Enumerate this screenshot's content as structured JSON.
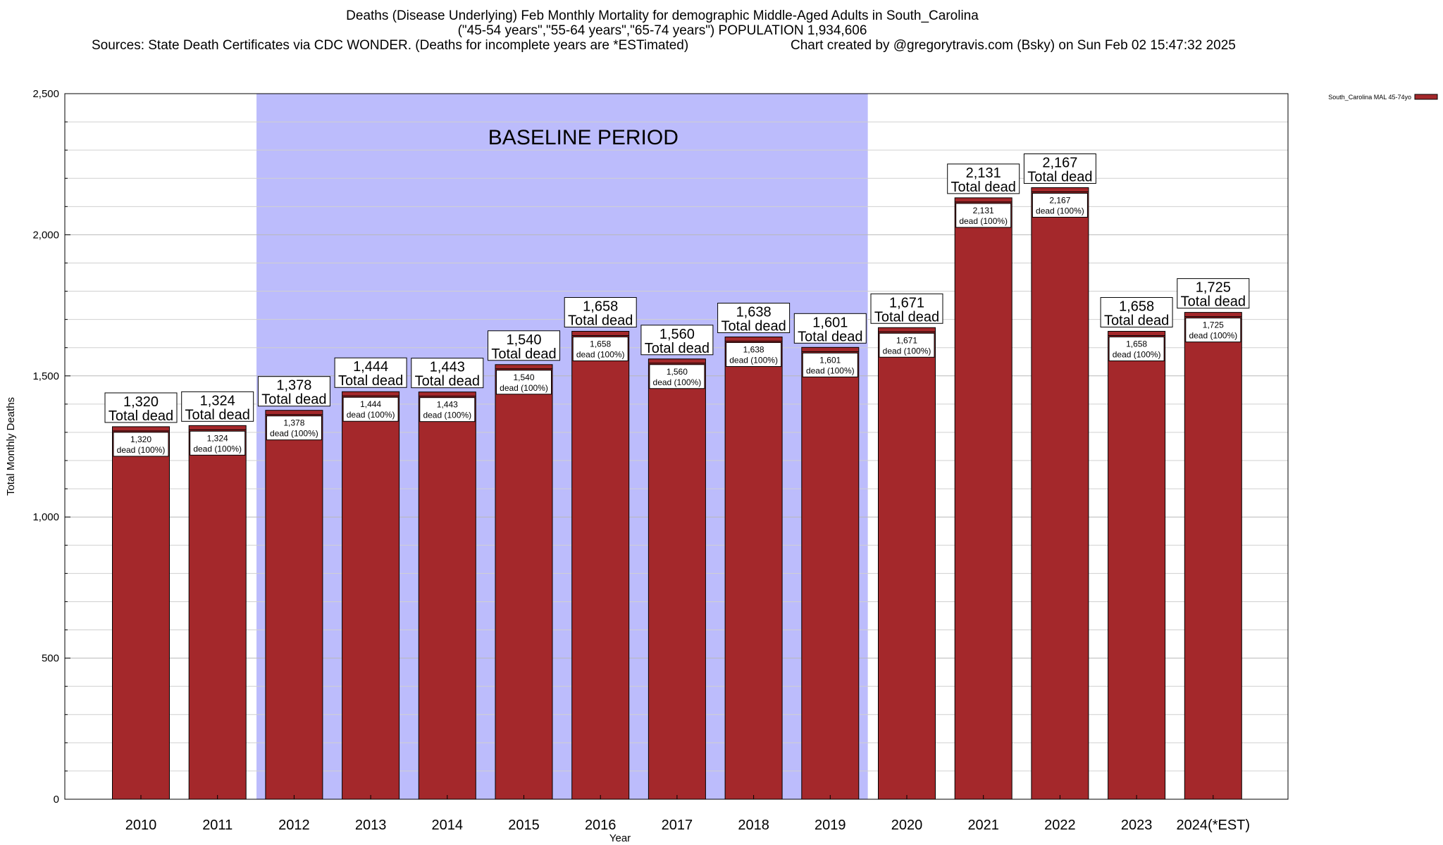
{
  "header": {
    "title_line1": "Deaths (Disease Underlying) Feb Monthly Mortality for demographic Middle-Aged Adults in South_Carolina",
    "title_line2": "(\"45-54 years\",\"55-64 years\",\"65-74 years\") POPULATION 1,934,606",
    "sources": "Sources: State Death Certificates via CDC WONDER. (Deaths for incomplete years are *ESTimated)",
    "credit": "Chart created by @gregorytravis.com (Bsky) on Sun Feb 02 15:47:32 2025"
  },
  "chart_data": {
    "type": "bar",
    "categories": [
      "2010",
      "2011",
      "2012",
      "2013",
      "2014",
      "2015",
      "2016",
      "2017",
      "2018",
      "2019",
      "2020",
      "2021",
      "2022",
      "2023",
      "2024(*EST)"
    ],
    "series": [
      {
        "name": "South_Carolina MAL 45-74yo",
        "color": "#a4282b",
        "values": [
          1320,
          1324,
          1378,
          1444,
          1443,
          1540,
          1658,
          1560,
          1638,
          1601,
          1671,
          2131,
          2167,
          1658,
          1725
        ]
      }
    ],
    "value_labels": [
      "1,320",
      "1,324",
      "1,378",
      "1,444",
      "1,443",
      "1,540",
      "1,658",
      "1,560",
      "1,638",
      "1,601",
      "1,671",
      "2,131",
      "2,167",
      "1,658",
      "1,725"
    ],
    "top_label_suffix": "Total dead",
    "inner_label_suffix": "dead (100%)",
    "xlabel": "Year",
    "ylabel": "Total Monthly Deaths",
    "ylim": [
      0,
      2500
    ],
    "yticks": [
      0,
      500,
      1000,
      1500,
      2000,
      2500
    ],
    "ytick_labels": [
      "0",
      "500",
      "1,000",
      "1,500",
      "2,000",
      "2,500"
    ],
    "grid": true,
    "legend": "top-right",
    "baseline": {
      "label": "BASELINE PERIOD",
      "from": "2012",
      "to": "2019",
      "color": "#bcbcfc"
    }
  }
}
